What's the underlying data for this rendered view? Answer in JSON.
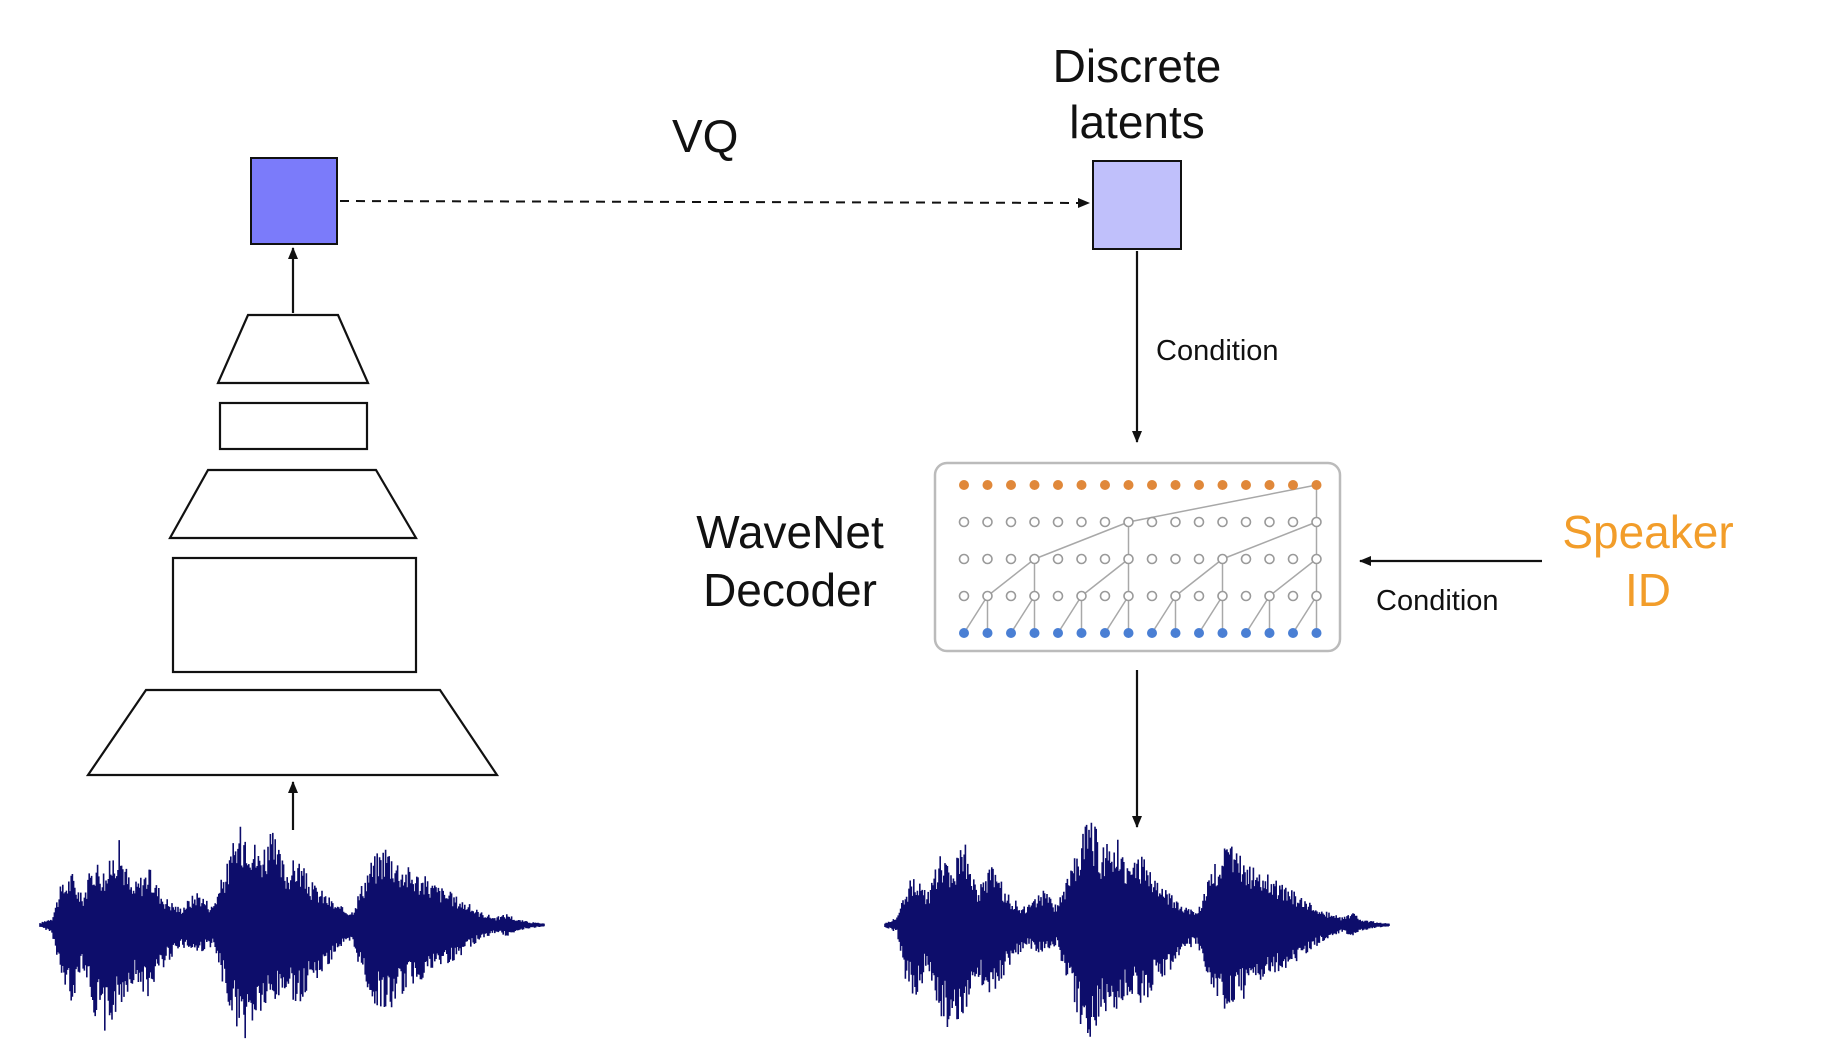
{
  "labels": {
    "vq": "VQ",
    "discrete_latents_line1": "Discrete",
    "discrete_latents_line2": "latents",
    "condition_top": "Condition",
    "wavenet_line1": "WaveNet",
    "wavenet_line2": "Decoder",
    "condition_right": "Condition",
    "speaker_line1": "Speaker",
    "speaker_line2": "ID"
  },
  "colors": {
    "encoder_output_box": "#7b7bfa",
    "discrete_latent_box": "#c0c0fb",
    "speaker_text": "#f29d2a",
    "waveform": "#0d0d6b",
    "wavenet_output_nodes": "#e0883a",
    "wavenet_input_nodes": "#4a7fd4",
    "wavenet_hidden_nodes": "#9a9a9a",
    "wavenet_panel_border": "#bbbbbb"
  },
  "icons": {
    "input_waveform": "audio-waveform-icon",
    "output_waveform": "audio-waveform-icon"
  }
}
